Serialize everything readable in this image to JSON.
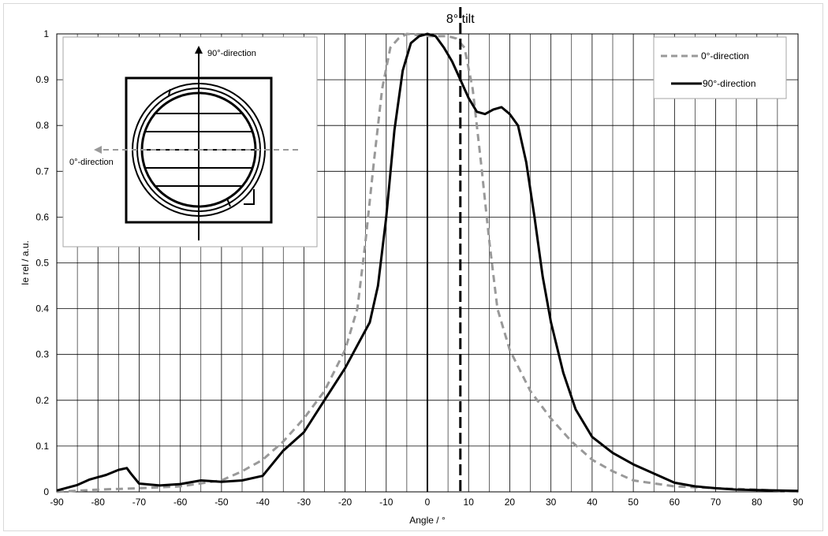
{
  "chart_data": {
    "type": "line",
    "title": "",
    "xlabel": "Angle / °",
    "ylabel": "Ie rel / a.u.",
    "xlim": [
      -90,
      90
    ],
    "ylim": [
      0,
      1
    ],
    "x_ticks": [
      "-90",
      "-80",
      "-70",
      "-60",
      "-50",
      "-40",
      "-30",
      "-20",
      "-10",
      "0",
      "10",
      "20",
      "30",
      "40",
      "50",
      "60",
      "70",
      "80",
      "90"
    ],
    "y_ticks": [
      "0",
      "0.1",
      "0.2",
      "0.3",
      "0.4",
      "0.5",
      "0.6",
      "0.7",
      "0.8",
      "0.9",
      "1"
    ],
    "grid": true,
    "legend_position": "top-right",
    "annotation": {
      "text": "8° tilt",
      "x": 8
    },
    "inset": {
      "vertical_label": "90°-direction",
      "horizontal_label": "0°-direction"
    },
    "series": [
      {
        "name": "0°-direction",
        "color": "#999999",
        "style": "dashed",
        "points": [
          [
            -90,
            0.0
          ],
          [
            -80,
            0.005
          ],
          [
            -70,
            0.008
          ],
          [
            -60,
            0.012
          ],
          [
            -50,
            0.025
          ],
          [
            -45,
            0.045
          ],
          [
            -40,
            0.07
          ],
          [
            -35,
            0.11
          ],
          [
            -30,
            0.16
          ],
          [
            -25,
            0.22
          ],
          [
            -20,
            0.31
          ],
          [
            -17,
            0.4
          ],
          [
            -15,
            0.55
          ],
          [
            -13,
            0.72
          ],
          [
            -11,
            0.88
          ],
          [
            -9,
            0.97
          ],
          [
            -7,
            0.99
          ],
          [
            -5,
            1.0
          ],
          [
            0,
            0.995
          ],
          [
            5,
            0.995
          ],
          [
            7,
            0.99
          ],
          [
            9,
            0.97
          ],
          [
            11,
            0.88
          ],
          [
            13,
            0.72
          ],
          [
            15,
            0.55
          ],
          [
            17,
            0.4
          ],
          [
            20,
            0.31
          ],
          [
            25,
            0.22
          ],
          [
            30,
            0.16
          ],
          [
            35,
            0.11
          ],
          [
            40,
            0.07
          ],
          [
            45,
            0.045
          ],
          [
            50,
            0.025
          ],
          [
            60,
            0.012
          ],
          [
            70,
            0.008
          ],
          [
            80,
            0.005
          ],
          [
            90,
            0.0
          ]
        ]
      },
      {
        "name": "90°-direction",
        "color": "#000000",
        "style": "solid",
        "points": [
          [
            -90,
            0.003
          ],
          [
            -85,
            0.015
          ],
          [
            -82,
            0.027
          ],
          [
            -78,
            0.037
          ],
          [
            -75,
            0.048
          ],
          [
            -73,
            0.052
          ],
          [
            -72,
            0.04
          ],
          [
            -70,
            0.018
          ],
          [
            -65,
            0.014
          ],
          [
            -60,
            0.017
          ],
          [
            -55,
            0.025
          ],
          [
            -50,
            0.022
          ],
          [
            -45,
            0.025
          ],
          [
            -40,
            0.035
          ],
          [
            -35,
            0.09
          ],
          [
            -30,
            0.13
          ],
          [
            -25,
            0.2
          ],
          [
            -20,
            0.27
          ],
          [
            -17,
            0.32
          ],
          [
            -14,
            0.37
          ],
          [
            -12,
            0.45
          ],
          [
            -10,
            0.6
          ],
          [
            -8,
            0.79
          ],
          [
            -6,
            0.92
          ],
          [
            -4,
            0.98
          ],
          [
            -2,
            0.995
          ],
          [
            0,
            1.0
          ],
          [
            2,
            0.995
          ],
          [
            4,
            0.97
          ],
          [
            6,
            0.94
          ],
          [
            8,
            0.9
          ],
          [
            10,
            0.86
          ],
          [
            12,
            0.83
          ],
          [
            14,
            0.825
          ],
          [
            16,
            0.835
          ],
          [
            18,
            0.84
          ],
          [
            20,
            0.825
          ],
          [
            22,
            0.8
          ],
          [
            24,
            0.72
          ],
          [
            26,
            0.6
          ],
          [
            28,
            0.47
          ],
          [
            30,
            0.37
          ],
          [
            33,
            0.26
          ],
          [
            36,
            0.18
          ],
          [
            40,
            0.12
          ],
          [
            45,
            0.085
          ],
          [
            50,
            0.06
          ],
          [
            55,
            0.04
          ],
          [
            60,
            0.02
          ],
          [
            65,
            0.012
          ],
          [
            70,
            0.008
          ],
          [
            75,
            0.005
          ],
          [
            80,
            0.004
          ],
          [
            85,
            0.003
          ],
          [
            90,
            0.002
          ]
        ]
      }
    ]
  }
}
